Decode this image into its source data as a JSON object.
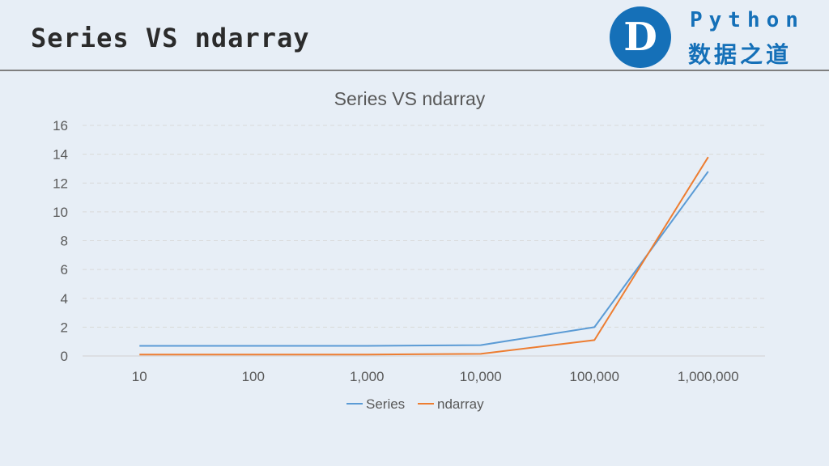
{
  "header": {
    "title": "Series VS ndarray",
    "brand_line1": "Python",
    "brand_line2": "数据之道",
    "logo_letter": "D",
    "brand_color": "#1570b8"
  },
  "chart_data": {
    "type": "line",
    "title": "Series VS ndarray",
    "categories": [
      "10",
      "100",
      "1,000",
      "10,000",
      "100,000",
      "1,000,000"
    ],
    "series": [
      {
        "name": "Series",
        "color": "#5b9bd5",
        "values": [
          0.7,
          0.7,
          0.7,
          0.75,
          2.0,
          12.8
        ]
      },
      {
        "name": "ndarray",
        "color": "#ed7d31",
        "values": [
          0.1,
          0.1,
          0.1,
          0.15,
          1.1,
          13.8
        ]
      }
    ],
    "ylim": [
      0,
      16
    ],
    "yticks": [
      "0",
      "2",
      "4",
      "6",
      "8",
      "10",
      "12",
      "14",
      "16"
    ],
    "grid": true,
    "legend_position": "bottom"
  }
}
